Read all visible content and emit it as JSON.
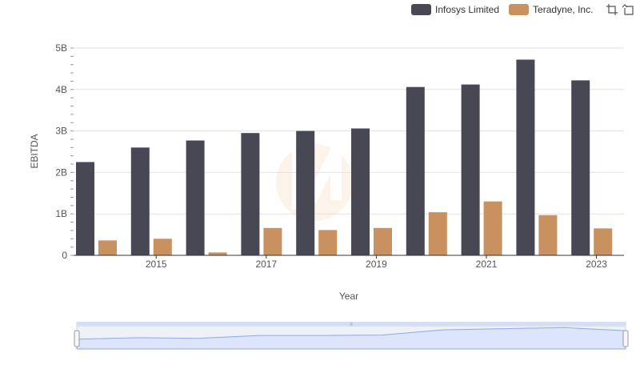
{
  "chart_data": {
    "type": "bar",
    "title": "",
    "xlabel": "Year",
    "ylabel": "EBITDA",
    "x_ticks": [
      "2015",
      "2017",
      "2019",
      "2021",
      "2023"
    ],
    "y_ticks": [
      "0",
      "1B",
      "2B",
      "3B",
      "4B",
      "5B"
    ],
    "ylim": [
      0,
      5000000000
    ],
    "categories": [
      2014,
      2015,
      2016,
      2017,
      2018,
      2019,
      2020,
      2021,
      2022,
      2023
    ],
    "legend_position": "top-right",
    "series": [
      {
        "name": "Infosys Limited",
        "color": "#484855",
        "values": [
          2250000000,
          2600000000,
          2770000000,
          2950000000,
          3000000000,
          3060000000,
          4060000000,
          4120000000,
          4720000000,
          4220000000
        ]
      },
      {
        "name": "Teradyne, Inc.",
        "color": "#c9915f",
        "values": [
          360000000,
          400000000,
          70000000,
          660000000,
          610000000,
          660000000,
          1040000000,
          1300000000,
          970000000,
          650000000
        ]
      }
    ]
  },
  "legend": {
    "items": [
      {
        "label": "Infosys Limited",
        "color": "#484855"
      },
      {
        "label": "Teradyne, Inc.",
        "color": "#c9915f"
      }
    ]
  },
  "toolbar": {
    "icons": [
      "zoom-select-icon",
      "zoom-reset-icon"
    ]
  },
  "navigator": {
    "fill": "#dce5fb",
    "stroke": "#8fa8e6"
  }
}
